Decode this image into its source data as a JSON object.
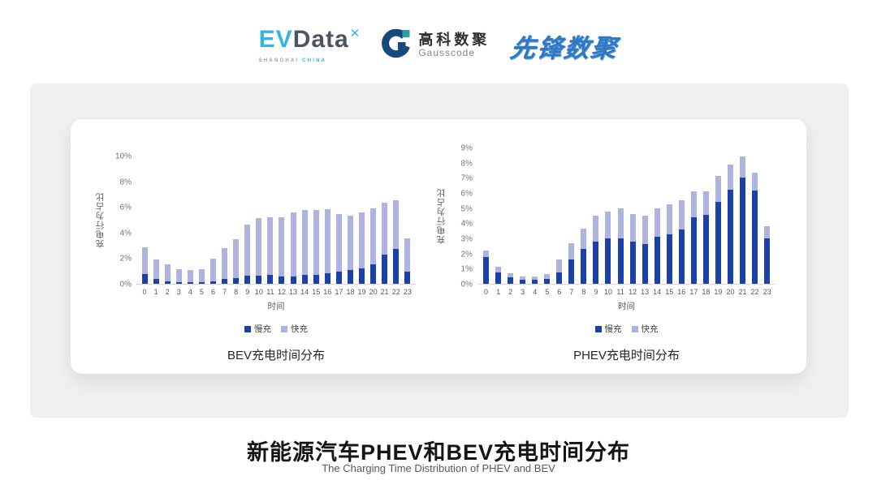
{
  "header": {
    "evdata_logo": {
      "ev": "EV",
      "data": "Data",
      "mark": "✕",
      "sub_left": "SHANGHAI",
      "sub_right": "CHINA"
    },
    "gausscode_logo": {
      "cn": "高科数聚",
      "en": "Gausscode"
    },
    "pioneer_logo": {
      "text": "先锋数聚"
    }
  },
  "footer": {
    "title": "新能源汽车PHEV和BEV充电时间分布",
    "subtitle": "The Charging Time Distribution of PHEV and BEV"
  },
  "colors": {
    "slow": "#1b41a9",
    "fast": "#aeb4dd",
    "panel": "#efefef",
    "axis": "#d9d9d9"
  },
  "chart_data": [
    {
      "type": "bar",
      "stacked": true,
      "title": "BEV充电时间分布",
      "ylabel": "充电行为占比",
      "xlabel": "时间",
      "ymax": 10,
      "ylim": [
        0,
        10
      ],
      "grid": false,
      "legend_position": "bottom",
      "yticks": [
        "0%",
        "2%",
        "4%",
        "6%",
        "8%",
        "10%"
      ],
      "categories": [
        "0",
        "1",
        "2",
        "3",
        "4",
        "5",
        "6",
        "7",
        "8",
        "9",
        "10",
        "11",
        "12",
        "13",
        "14",
        "15",
        "16",
        "17",
        "18",
        "19",
        "20",
        "21",
        "22",
        "23"
      ],
      "series": [
        {
          "name": "慢充",
          "color_key": "slow",
          "values": [
            0.75,
            0.35,
            0.2,
            0.1,
            0.1,
            0.15,
            0.2,
            0.35,
            0.45,
            0.65,
            0.65,
            0.7,
            0.6,
            0.6,
            0.7,
            0.7,
            0.8,
            0.95,
            1.1,
            1.2,
            1.5,
            2.3,
            2.7,
            0.95
          ]
        },
        {
          "name": "快充",
          "color_key": "fast",
          "values": [
            2.1,
            1.55,
            1.3,
            1.05,
            0.95,
            1.0,
            1.75,
            2.45,
            3.05,
            3.95,
            4.5,
            4.5,
            4.6,
            5.0,
            5.05,
            5.05,
            5.0,
            4.5,
            4.2,
            4.35,
            4.4,
            4.0,
            3.8,
            2.6
          ]
        }
      ],
      "totals": [
        2.85,
        1.9,
        1.5,
        1.15,
        1.05,
        1.15,
        1.95,
        2.8,
        3.5,
        4.6,
        5.15,
        5.2,
        5.2,
        5.6,
        5.75,
        5.75,
        5.8,
        5.45,
        5.3,
        5.55,
        5.9,
        6.3,
        6.5,
        3.55
      ]
    },
    {
      "type": "bar",
      "stacked": true,
      "title": "PHEV充电时间分布",
      "ylabel": "充电行为占比",
      "xlabel": "时间",
      "ymax": 9,
      "ylim": [
        0,
        9
      ],
      "grid": false,
      "legend_position": "bottom",
      "yticks": [
        "0%",
        "1%",
        "2%",
        "3%",
        "4%",
        "5%",
        "6%",
        "7%",
        "8%",
        "9%"
      ],
      "categories": [
        "0",
        "1",
        "2",
        "3",
        "4",
        "5",
        "6",
        "7",
        "8",
        "9",
        "10",
        "11",
        "12",
        "13",
        "14",
        "15",
        "16",
        "17",
        "18",
        "19",
        "20",
        "21",
        "22",
        "23"
      ],
      "series": [
        {
          "name": "慢充",
          "color_key": "slow",
          "values": [
            1.75,
            0.75,
            0.45,
            0.25,
            0.25,
            0.3,
            0.75,
            1.6,
            2.3,
            2.8,
            3.0,
            3.0,
            2.8,
            2.65,
            3.1,
            3.25,
            3.6,
            4.4,
            4.55,
            5.4,
            6.2,
            7.0,
            6.15,
            3.0
          ]
        },
        {
          "name": "快充",
          "color_key": "fast",
          "values": [
            0.45,
            0.4,
            0.25,
            0.25,
            0.25,
            0.35,
            0.85,
            1.1,
            1.35,
            1.7,
            1.75,
            2.0,
            1.8,
            1.85,
            1.9,
            2.0,
            1.9,
            1.7,
            1.55,
            1.7,
            1.7,
            1.4,
            1.2,
            0.8
          ]
        }
      ],
      "totals": [
        2.2,
        1.15,
        0.7,
        0.5,
        0.5,
        0.65,
        1.6,
        2.7,
        3.65,
        4.5,
        4.75,
        5.0,
        4.6,
        4.5,
        5.0,
        5.25,
        5.5,
        6.1,
        6.1,
        7.1,
        7.9,
        8.4,
        7.35,
        3.8
      ]
    }
  ]
}
